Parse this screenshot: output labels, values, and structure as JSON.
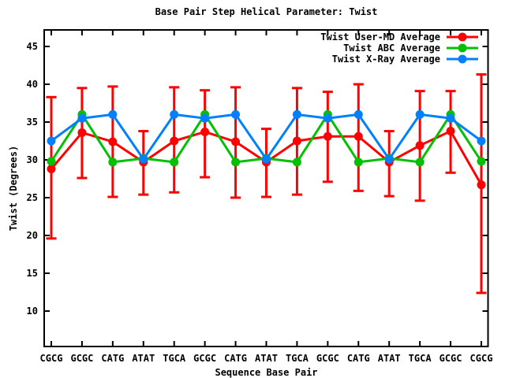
{
  "window": {
    "background_color": "#ffffff",
    "foreground_color": "#000000"
  },
  "chart_data": {
    "type": "line",
    "title": "Base Pair Step Helical Parameter: Twist",
    "xlabel": "Sequence Base Pair",
    "ylabel": "Twist (Degrees)",
    "grid": false,
    "legend_position": "top-right-inside",
    "marker": "circle",
    "categories": [
      "CGCG",
      "GCGC",
      "CATG",
      "ATAT",
      "TGCA",
      "GCGC",
      "CATG",
      "ATAT",
      "TGCA",
      "GCGC",
      "CATG",
      "ATAT",
      "TGCA",
      "GCGC",
      "CGCG"
    ],
    "yticks": [
      10,
      15,
      20,
      25,
      30,
      35,
      40,
      45
    ],
    "ylim": [
      5.3,
      47.2
    ],
    "series": [
      {
        "name": "Twist User-MD Average",
        "color": "#ff0000",
        "values": [
          28.8,
          33.6,
          32.4,
          29.7,
          32.5,
          33.7,
          32.4,
          29.7,
          32.5,
          33.1,
          33.1,
          29.7,
          31.9,
          33.8,
          26.7
        ],
        "error_lo": [
          19.6,
          27.6,
          25.1,
          25.4,
          25.7,
          27.7,
          25.0,
          25.1,
          25.4,
          27.1,
          25.9,
          25.2,
          24.6,
          28.3,
          12.4
        ],
        "error_hi": [
          38.3,
          39.5,
          39.7,
          33.8,
          39.6,
          39.2,
          39.6,
          34.1,
          39.5,
          39.0,
          40.0,
          33.8,
          39.1,
          39.1,
          41.3
        ]
      },
      {
        "name": "Twist ABC Average",
        "color": "#00c000",
        "values": [
          29.8,
          36.0,
          29.7,
          30.2,
          29.7,
          36.0,
          29.7,
          30.2,
          29.7,
          36.0,
          29.7,
          30.2,
          29.7,
          36.0,
          29.8
        ]
      },
      {
        "name": "Twist X-Ray Average",
        "color": "#0080ff",
        "values": [
          32.5,
          35.5,
          36.0,
          30.1,
          36.0,
          35.5,
          36.0,
          30.1,
          36.0,
          35.5,
          36.0,
          30.1,
          36.0,
          35.5,
          32.5
        ]
      }
    ]
  }
}
